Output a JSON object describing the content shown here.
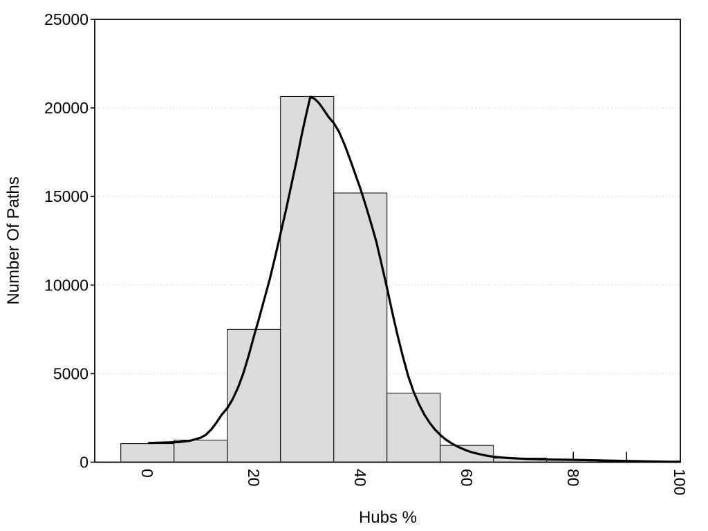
{
  "figure": {
    "background": "#ffffff"
  },
  "chart_data": {
    "type": "bar",
    "subtype": "histogram-with-density-curve",
    "title": "",
    "xlabel": "Hubs %",
    "ylabel": "Number Of Paths",
    "xlim": [
      -9.9,
      100.1
    ],
    "ylim": [
      0,
      25000
    ],
    "grid": {
      "horizontal_dotted_at": [
        5000,
        10000,
        15000,
        20000
      ],
      "color": "#c6c6c6"
    },
    "x_ticks": {
      "values": [
        0,
        20,
        40,
        60,
        80,
        100
      ],
      "labels": [
        "0",
        "20",
        "40",
        "60",
        "80",
        "100"
      ],
      "rotation_deg": 90
    },
    "x_minor_marks": [
      80,
      90
    ],
    "y_ticks": {
      "values": [
        0,
        5000,
        10000,
        15000,
        20000,
        25000
      ],
      "labels": [
        "0",
        "5000",
        "10000",
        "15000",
        "20000",
        "25000"
      ]
    },
    "bins": {
      "width": 10,
      "centers": [
        0,
        10,
        20,
        30,
        40,
        50,
        60,
        70,
        80,
        90
      ],
      "edges": [
        -5,
        5,
        15,
        25,
        35,
        45,
        55,
        65,
        75,
        85,
        95
      ]
    },
    "values": [
      1050,
      1250,
      7500,
      20650,
      15200,
      3900,
      950,
      230,
      140,
      60
    ],
    "bar_fill": "#dcdcdc",
    "bar_stroke": "#000000",
    "density_curve": {
      "color": "#000000",
      "stroke_width": 3.2,
      "points": [
        [
          0.3,
          1085
        ],
        [
          2,
          1100
        ],
        [
          4,
          1115
        ],
        [
          6,
          1140
        ],
        [
          8,
          1210
        ],
        [
          10,
          1380
        ],
        [
          11,
          1550
        ],
        [
          12,
          1850
        ],
        [
          13,
          2250
        ],
        [
          14,
          2700
        ],
        [
          15,
          3050
        ],
        [
          16,
          3550
        ],
        [
          17,
          4200
        ],
        [
          18,
          5000
        ],
        [
          19,
          6000
        ],
        [
          20,
          7100
        ],
        [
          21,
          8150
        ],
        [
          22,
          9250
        ],
        [
          23,
          10350
        ],
        [
          24,
          11600
        ],
        [
          25,
          12900
        ],
        [
          26,
          14200
        ],
        [
          27,
          15600
        ],
        [
          28,
          17000
        ],
        [
          29,
          18500
        ],
        [
          29.8,
          19600
        ],
        [
          30.6,
          20630
        ],
        [
          31.4,
          20520
        ],
        [
          32.2,
          20280
        ],
        [
          33,
          19950
        ],
        [
          34,
          19500
        ],
        [
          35,
          19150
        ],
        [
          36,
          18650
        ],
        [
          37,
          17950
        ],
        [
          38,
          17150
        ],
        [
          39,
          16300
        ],
        [
          40,
          15450
        ],
        [
          41,
          14500
        ],
        [
          42,
          13500
        ],
        [
          43,
          12450
        ],
        [
          44,
          11150
        ],
        [
          45,
          9850
        ],
        [
          46,
          8450
        ],
        [
          47,
          7150
        ],
        [
          48,
          5950
        ],
        [
          49,
          4850
        ],
        [
          50,
          3980
        ],
        [
          51,
          3280
        ],
        [
          52,
          2700
        ],
        [
          53,
          2230
        ],
        [
          54,
          1850
        ],
        [
          55,
          1540
        ],
        [
          56,
          1290
        ],
        [
          57,
          1090
        ],
        [
          58,
          920
        ],
        [
          59,
          780
        ],
        [
          60,
          660
        ],
        [
          61,
          560
        ],
        [
          62,
          480
        ],
        [
          63,
          415
        ],
        [
          64,
          355
        ],
        [
          65,
          312
        ],
        [
          66,
          280
        ],
        [
          67,
          255
        ],
        [
          68,
          235
        ],
        [
          69,
          218
        ],
        [
          70,
          203
        ],
        [
          72,
          180
        ],
        [
          74,
          163
        ],
        [
          76,
          150
        ],
        [
          78,
          140
        ],
        [
          80,
          131
        ],
        [
          82,
          120
        ],
        [
          84,
          108
        ],
        [
          86,
          95
        ],
        [
          88,
          82
        ],
        [
          90,
          70
        ],
        [
          92,
          58
        ],
        [
          94,
          46
        ],
        [
          96,
          36
        ],
        [
          98,
          28
        ],
        [
          100,
          22
        ]
      ]
    }
  }
}
